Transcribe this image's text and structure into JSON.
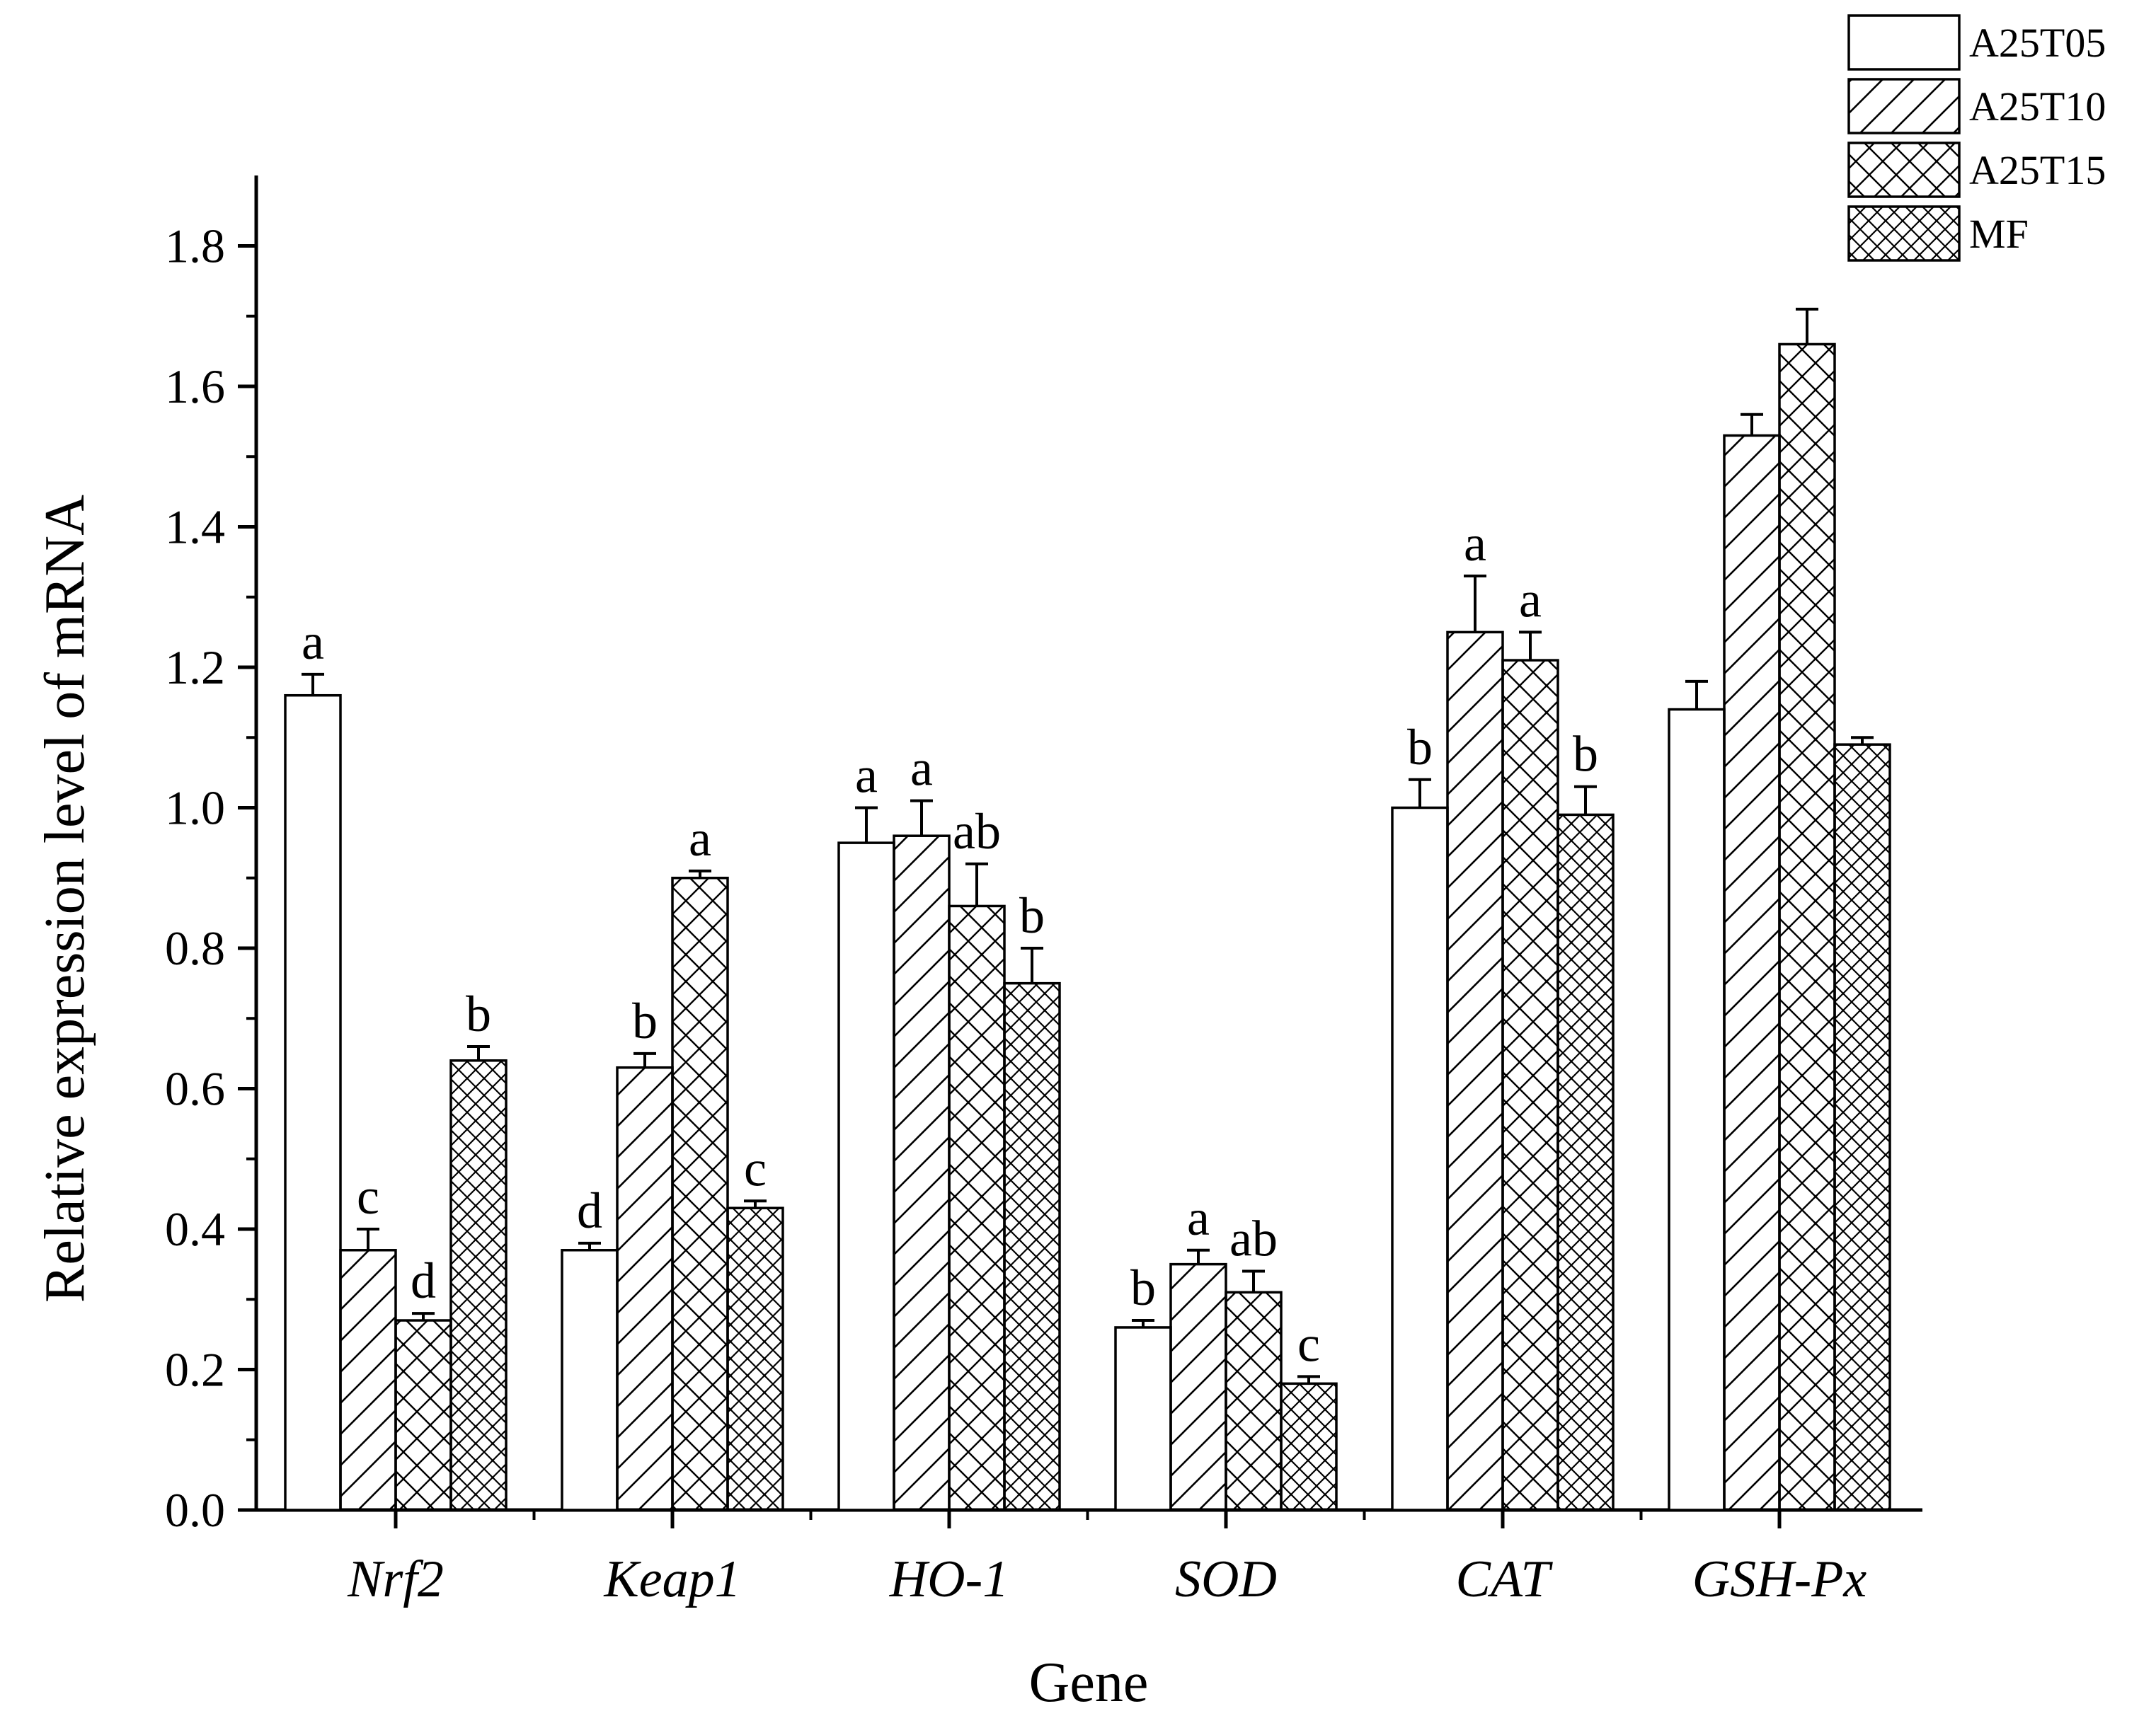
{
  "chart_data": {
    "type": "bar",
    "title": "",
    "xlabel": "Gene",
    "ylabel": "Relative expression level of mRNA",
    "ylim": [
      0,
      1.9
    ],
    "yticks": [
      "0.0",
      "0.2",
      "0.4",
      "0.6",
      "0.8",
      "1.0",
      "1.2",
      "1.4",
      "1.6",
      "1.8"
    ],
    "categories": [
      "Nrf2",
      "Keap1",
      "HO-1",
      "SOD",
      "CAT",
      "GSH-Px"
    ],
    "legend_position": "top-right",
    "series": [
      {
        "name": "A25T05",
        "pattern": "none",
        "values": [
          1.16,
          0.37,
          0.95,
          0.26,
          1.0,
          1.14
        ],
        "errors": [
          0.03,
          0.01,
          0.05,
          0.01,
          0.04,
          0.04
        ],
        "labels": [
          "a",
          "d",
          "a",
          "b",
          "b",
          ""
        ]
      },
      {
        "name": "A25T10",
        "pattern": "diagonal",
        "values": [
          0.37,
          0.63,
          0.96,
          0.35,
          1.25,
          1.53
        ],
        "errors": [
          0.03,
          0.02,
          0.05,
          0.02,
          0.08,
          0.03
        ],
        "labels": [
          "c",
          "b",
          "a",
          "a",
          "a",
          ""
        ]
      },
      {
        "name": "A25T15",
        "pattern": "crosshatch",
        "values": [
          0.27,
          0.9,
          0.86,
          0.31,
          1.21,
          1.66
        ],
        "errors": [
          0.01,
          0.01,
          0.06,
          0.03,
          0.04,
          0.05
        ],
        "labels": [
          "d",
          "a",
          "ab",
          "ab",
          "a",
          ""
        ]
      },
      {
        "name": "MF",
        "pattern": "crosshatch-dense",
        "values": [
          0.64,
          0.43,
          0.75,
          0.18,
          0.99,
          1.09
        ],
        "errors": [
          0.02,
          0.01,
          0.05,
          0.01,
          0.04,
          0.01
        ],
        "labels": [
          "b",
          "c",
          "b",
          "c",
          "b",
          ""
        ]
      }
    ]
  }
}
